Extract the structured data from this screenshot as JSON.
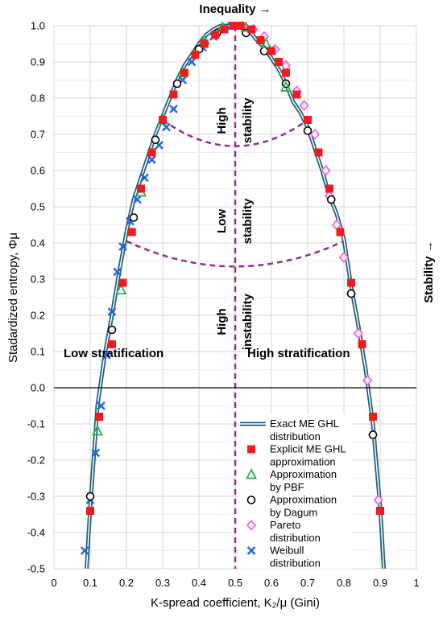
{
  "chart_data": {
    "type": "scatter",
    "title": "",
    "xlabel": "K-spread coefficient, K₂/μ (Gini)",
    "ylabel": "Stadardized entropy, Φμ",
    "top_label": "Inequality →",
    "right_label": "Stability →",
    "xlim": [
      0,
      1
    ],
    "ylim": [
      -0.5,
      1.0
    ],
    "xticks": [
      "0",
      "0.1",
      "0.2",
      "0.3",
      "0.4",
      "0.5",
      "0.6",
      "0.7",
      "0.8",
      "0.9",
      "1"
    ],
    "yticks": [
      "1.0",
      "0.9",
      "0.8",
      "0.7",
      "0.6",
      "0.5",
      "0.4",
      "0.3",
      "0.2",
      "0.1",
      "0.0",
      "-0.1",
      "-0.2",
      "-0.3",
      "-0.4",
      "-0.5"
    ],
    "grid": true,
    "legend_position": "right-bottom",
    "colors": {
      "curve": "#1f5f7a",
      "red": "#ee1c1c",
      "green": "#22b14c",
      "black": "#000000",
      "pink": "#ee66dd",
      "blue": "#2266dd",
      "dashed": "#9b2a8c"
    },
    "region_labels": {
      "high_stability": [
        "High",
        "stability"
      ],
      "low_stability": [
        "Low",
        "stability"
      ],
      "high_instability": [
        "High",
        "instability"
      ],
      "low_stratification": "Low stratification",
      "high_stratification": "High stratification"
    },
    "series": [
      {
        "name": "Exact ME GHL distribution",
        "marker": "line",
        "x": [
          0.09,
          0.1,
          0.12,
          0.14,
          0.16,
          0.18,
          0.2,
          0.22,
          0.24,
          0.26,
          0.28,
          0.3,
          0.32,
          0.34,
          0.36,
          0.38,
          0.4,
          0.42,
          0.44,
          0.46,
          0.48,
          0.5,
          0.52,
          0.54,
          0.56,
          0.58,
          0.6,
          0.62,
          0.64,
          0.66,
          0.68,
          0.7,
          0.72,
          0.74,
          0.76,
          0.78,
          0.8,
          0.82,
          0.84,
          0.86,
          0.88,
          0.9,
          0.91
        ],
        "y": [
          -0.5,
          -0.33,
          -0.05,
          0.09,
          0.2,
          0.32,
          0.43,
          0.52,
          0.58,
          0.64,
          0.7,
          0.75,
          0.8,
          0.85,
          0.89,
          0.92,
          0.95,
          0.975,
          0.99,
          1.0,
          1.0,
          1.0,
          0.998,
          0.985,
          0.96,
          0.94,
          0.91,
          0.88,
          0.84,
          0.79,
          0.76,
          0.72,
          0.66,
          0.6,
          0.53,
          0.48,
          0.41,
          0.28,
          0.17,
          0.05,
          -0.1,
          -0.33,
          -0.5
        ]
      },
      {
        "name": "Explicit ME GHL approximation",
        "marker": "square",
        "x": [
          0.1,
          0.125,
          0.16,
          0.19,
          0.215,
          0.24,
          0.27,
          0.3,
          0.33,
          0.36,
          0.39,
          0.415,
          0.445,
          0.47,
          0.495,
          0.515,
          0.545,
          0.57,
          0.6,
          0.62,
          0.64,
          0.67,
          0.7,
          0.73,
          0.76,
          0.79,
          0.82,
          0.85,
          0.88,
          0.9
        ],
        "y": [
          -0.34,
          -0.08,
          0.12,
          0.29,
          0.43,
          0.55,
          0.65,
          0.74,
          0.81,
          0.87,
          0.92,
          0.95,
          0.975,
          0.99,
          1.0,
          1.0,
          0.99,
          0.96,
          0.93,
          0.9,
          0.87,
          0.81,
          0.74,
          0.65,
          0.55,
          0.43,
          0.29,
          0.12,
          -0.08,
          -0.34
        ]
      },
      {
        "name": "Approximation by PBF",
        "marker": "triangle",
        "x": [
          0.12,
          0.185,
          0.24,
          0.3,
          0.355,
          0.415,
          0.465,
          0.53,
          0.585,
          0.64
        ],
        "y": [
          -0.12,
          0.27,
          0.54,
          0.74,
          0.87,
          0.96,
          0.995,
          0.995,
          0.95,
          0.83
        ]
      },
      {
        "name": "Approximation by Dagum",
        "marker": "circle",
        "x": [
          0.1,
          0.16,
          0.22,
          0.28,
          0.34,
          0.4,
          0.45,
          0.53,
          0.58,
          0.64,
          0.7,
          0.765,
          0.82,
          0.88
        ],
        "y": [
          -0.3,
          0.16,
          0.47,
          0.685,
          0.84,
          0.935,
          0.98,
          0.98,
          0.93,
          0.84,
          0.71,
          0.52,
          0.26,
          -0.13
        ]
      },
      {
        "name": "Pareto distribution",
        "marker": "diamond",
        "x": [
          0.52,
          0.55,
          0.58,
          0.61,
          0.64,
          0.67,
          0.69,
          0.72,
          0.75,
          0.76,
          0.78,
          0.8,
          0.82,
          0.84,
          0.865,
          0.88,
          0.895
        ],
        "y": [
          0.998,
          0.99,
          0.97,
          0.935,
          0.89,
          0.82,
          0.78,
          0.7,
          0.6,
          0.53,
          0.45,
          0.36,
          0.26,
          0.15,
          0.02,
          -0.13,
          -0.31
        ]
      },
      {
        "name": "Weibull distribution",
        "marker": "x",
        "x": [
          0.085,
          0.1,
          0.115,
          0.13,
          0.145,
          0.16,
          0.175,
          0.19,
          0.21,
          0.23,
          0.25,
          0.27,
          0.29,
          0.31,
          0.33,
          0.355,
          0.38,
          0.41,
          0.44,
          0.47,
          0.49
        ],
        "y": [
          -0.45,
          -0.31,
          -0.18,
          -0.05,
          0.09,
          0.21,
          0.32,
          0.39,
          0.46,
          0.52,
          0.58,
          0.63,
          0.67,
          0.72,
          0.77,
          0.85,
          0.9,
          0.94,
          0.97,
          0.99,
          1.0
        ]
      }
    ]
  }
}
